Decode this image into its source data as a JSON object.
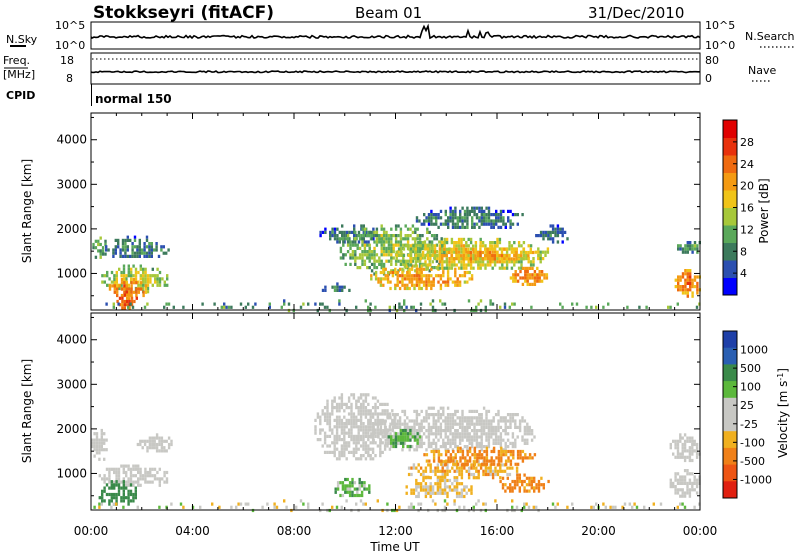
{
  "header": {
    "station": "Stokkseyri (fitACF)",
    "beam": "Beam 01",
    "date": "31/Dec/2010"
  },
  "noise_panel": {
    "left_label": "N.Sky",
    "right_label": "N.Search",
    "left_ticks": [
      "10^5",
      "10^0"
    ],
    "right_ticks": [
      "10^5",
      "10^0"
    ]
  },
  "freq_panel": {
    "left_label_line1": "Freq.",
    "left_label_line2": "[MHz]",
    "right_label": "Nave",
    "left_ticks": [
      "18",
      "8"
    ],
    "right_ticks": [
      "80",
      "0"
    ]
  },
  "cpid": {
    "label": "CPID",
    "value": "normal 150"
  },
  "x_axis": {
    "label": "Time UT",
    "ticks": [
      "00:00",
      "04:00",
      "08:00",
      "12:00",
      "16:00",
      "20:00",
      "00:00"
    ],
    "range_hours": [
      0,
      24
    ]
  },
  "colors": {
    "power": [
      "#0000ff",
      "#2b4fb0",
      "#3c7a5c",
      "#5aa85a",
      "#a7c83a",
      "#f0c419",
      "#f49a12",
      "#ef6a10",
      "#e8310c",
      "#e00000"
    ],
    "velocity_pos": [
      "#1e3fa8",
      "#2a5fb2",
      "#3a8a4a",
      "#5cb83c"
    ],
    "velocity_mid": "#c8c8c4",
    "velocity_neg": [
      "#f0b020",
      "#f08018",
      "#ee5514",
      "#e02010"
    ]
  },
  "chart_data": [
    {
      "type": "heatmap",
      "name": "power",
      "ylabel": "Slant Range [km]",
      "yticks": [
        1000,
        2000,
        3000,
        4000
      ],
      "ylim": [
        180,
        4600
      ],
      "colorbar_label": "Power [dB]",
      "colorbar_ticks": [
        4,
        8,
        12,
        16,
        20,
        24,
        28
      ],
      "colorbar_range": [
        0,
        32
      ],
      "regions": [
        {
          "t": [
            0.05,
            0.55
          ],
          "r": [
            1350,
            1900
          ],
          "level": 12
        },
        {
          "t": [
            0.55,
            3.1
          ],
          "r": [
            1350,
            1850
          ],
          "level": 8
        },
        {
          "t": [
            0.4,
            3.0
          ],
          "r": [
            600,
            1200
          ],
          "level": 16
        },
        {
          "t": [
            0.7,
            2.2
          ],
          "r": [
            450,
            900
          ],
          "level": 24
        },
        {
          "t": [
            1.0,
            1.8
          ],
          "r": [
            250,
            550
          ],
          "level": 28
        },
        {
          "t": [
            9.0,
            10.2
          ],
          "r": [
            600,
            800
          ],
          "level": 8
        },
        {
          "t": [
            9.0,
            11.5
          ],
          "r": [
            1700,
            2100
          ],
          "level": 8
        },
        {
          "t": [
            9.8,
            14.0
          ],
          "r": [
            1000,
            2100
          ],
          "level": 14
        },
        {
          "t": [
            11.0,
            15.0
          ],
          "r": [
            650,
            1200
          ],
          "level": 22
        },
        {
          "t": [
            12.0,
            18.0
          ],
          "r": [
            1100,
            1800
          ],
          "level": 18
        },
        {
          "t": [
            13.5,
            17.5
          ],
          "r": [
            1300,
            1650
          ],
          "level": 22
        },
        {
          "t": [
            16.5,
            18.0
          ],
          "r": [
            750,
            1150
          ],
          "level": 24
        },
        {
          "t": [
            12.8,
            17.0
          ],
          "r": [
            2000,
            2500
          ],
          "level": 8
        },
        {
          "t": [
            17.5,
            18.8
          ],
          "r": [
            1700,
            2100
          ],
          "level": 6
        },
        {
          "t": [
            23.0,
            24.0
          ],
          "r": [
            1450,
            1800
          ],
          "level": 10
        },
        {
          "t": [
            23.0,
            24.0
          ],
          "r": [
            500,
            1100
          ],
          "level": 24
        },
        {
          "t": [
            0.0,
            24.0
          ],
          "r": [
            200,
            420
          ],
          "level": 10
        }
      ]
    },
    {
      "type": "heatmap",
      "name": "velocity",
      "ylabel": "Slant Range [km]",
      "yticks": [
        1000,
        2000,
        3000,
        4000
      ],
      "ylim": [
        180,
        4600
      ],
      "colorbar_label": "Velocity [m s^-1]",
      "colorbar_ticks": [
        1000,
        500,
        100,
        25,
        -25,
        -100,
        -500,
        -1000
      ],
      "regions": [
        {
          "t": [
            0.0,
            0.6
          ],
          "r": [
            1300,
            2000
          ],
          "v": 0
        },
        {
          "t": [
            0.3,
            3.0
          ],
          "r": [
            700,
            1200
          ],
          "v": 0
        },
        {
          "t": [
            0.3,
            1.8
          ],
          "r": [
            300,
            850
          ],
          "v": 300
        },
        {
          "t": [
            1.8,
            3.2
          ],
          "r": [
            1500,
            1900
          ],
          "v": 0
        },
        {
          "t": [
            8.8,
            12.0
          ],
          "r": [
            1300,
            2800
          ],
          "v": 0
        },
        {
          "t": [
            11.0,
            17.5
          ],
          "r": [
            1500,
            2500
          ],
          "v": 0
        },
        {
          "t": [
            11.5,
            13.0
          ],
          "r": [
            1600,
            2000
          ],
          "v": 80
        },
        {
          "t": [
            9.5,
            11.0
          ],
          "r": [
            500,
            900
          ],
          "v": 60
        },
        {
          "t": [
            12.3,
            16.8
          ],
          "r": [
            900,
            1300
          ],
          "v": -60
        },
        {
          "t": [
            13.0,
            17.5
          ],
          "r": [
            1200,
            1600
          ],
          "v": -120
        },
        {
          "t": [
            12.3,
            15.0
          ],
          "r": [
            450,
            950
          ],
          "v": -40
        },
        {
          "t": [
            16.0,
            18.0
          ],
          "r": [
            600,
            1000
          ],
          "v": -150
        },
        {
          "t": [
            22.8,
            24.0
          ],
          "r": [
            1300,
            1900
          ],
          "v": 0
        },
        {
          "t": [
            22.8,
            24.0
          ],
          "r": [
            500,
            1100
          ],
          "v": 0
        },
        {
          "t": [
            0.0,
            24.0
          ],
          "r": [
            200,
            420
          ],
          "v": 0
        }
      ]
    }
  ]
}
